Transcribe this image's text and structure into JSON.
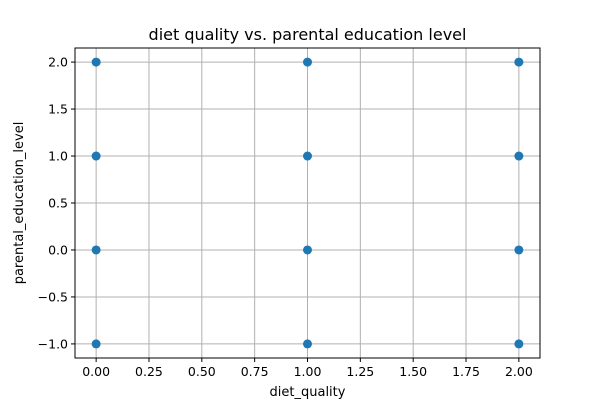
{
  "chart_data": {
    "type": "scatter",
    "title": "diet quality vs. parental education level",
    "xlabel": "diet_quality",
    "ylabel": "parental_education_level",
    "xlim": [
      -0.1,
      2.1
    ],
    "ylim": [
      -1.15,
      2.15
    ],
    "xticks": [
      0.0,
      0.25,
      0.5,
      0.75,
      1.0,
      1.25,
      1.5,
      1.75,
      2.0
    ],
    "xtick_labels": [
      "0.00",
      "0.25",
      "0.50",
      "0.75",
      "1.00",
      "1.25",
      "1.50",
      "1.75",
      "2.00"
    ],
    "yticks": [
      -1.0,
      -0.5,
      0.0,
      0.5,
      1.0,
      1.5,
      2.0
    ],
    "ytick_labels": [
      "−1.0",
      "−0.5",
      "0.0",
      "0.5",
      "1.0",
      "1.5",
      "2.0"
    ],
    "grid": true,
    "marker_color": "#1f77b4",
    "points": [
      {
        "x": 0,
        "y": 2
      },
      {
        "x": 0,
        "y": 1
      },
      {
        "x": 0,
        "y": 0
      },
      {
        "x": 0,
        "y": -1
      },
      {
        "x": 1,
        "y": 2
      },
      {
        "x": 1,
        "y": 1
      },
      {
        "x": 1,
        "y": 0
      },
      {
        "x": 1,
        "y": -1
      },
      {
        "x": 2,
        "y": 2
      },
      {
        "x": 2,
        "y": 1
      },
      {
        "x": 2,
        "y": 0
      },
      {
        "x": 2,
        "y": -1
      }
    ]
  }
}
